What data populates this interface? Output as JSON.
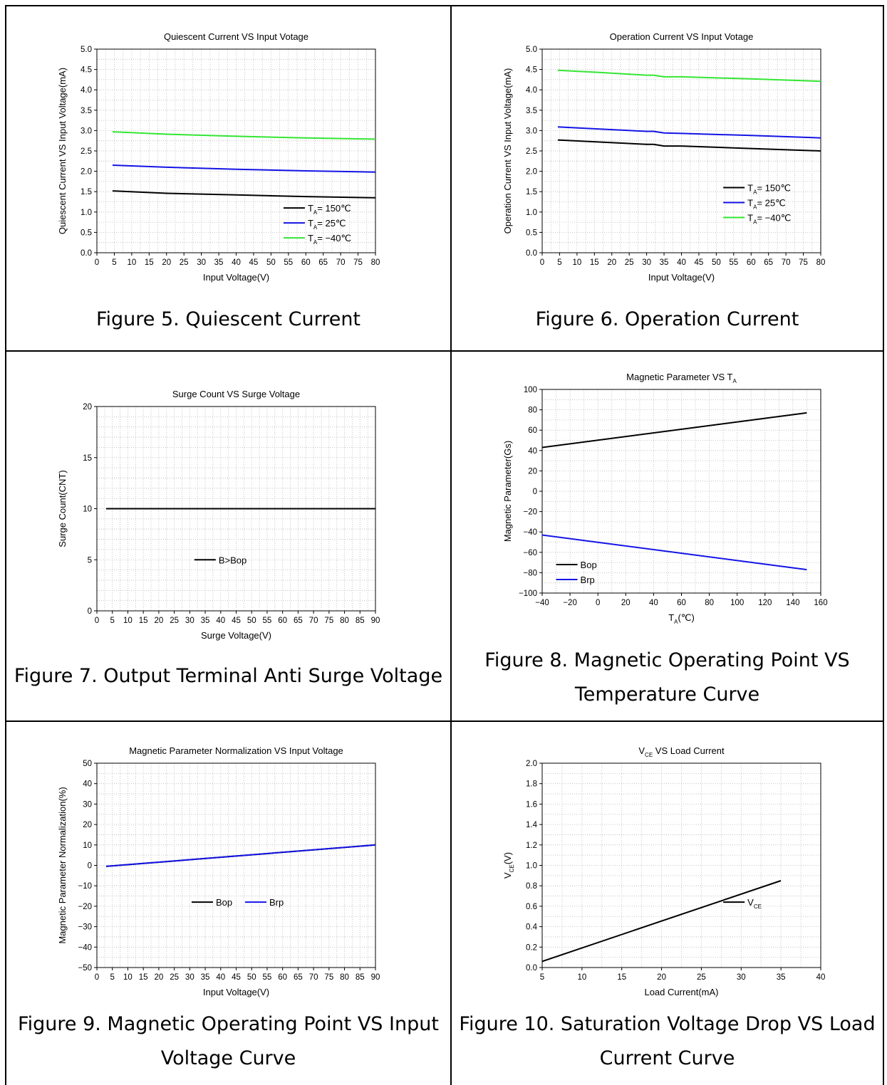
{
  "panels": [
    {
      "caption_lines": [
        "Figure 5. Quiescent Current"
      ],
      "chart": {
        "type": "line",
        "title": "Quiescent Current VS Input Votage",
        "title_sub": "",
        "xlabel": "Input Voltage(V)",
        "xlabel_sub": "",
        "xlabel_after": "",
        "ylabel": "Quiescent Current VS Input Voltage(mA)",
        "ylabel_sub": "",
        "ylabel_after": "",
        "xlim": [
          0,
          80
        ],
        "ylim": [
          0,
          5
        ],
        "xticks": [
          0,
          5,
          10,
          15,
          20,
          25,
          30,
          35,
          40,
          45,
          50,
          55,
          60,
          65,
          70,
          75,
          80
        ],
        "yticks": [
          0.0,
          0.5,
          1.0,
          1.5,
          2.0,
          2.5,
          3.0,
          3.5,
          4.0,
          4.5,
          5.0
        ],
        "ytick_decimals": 1,
        "xminor": 2.5,
        "yminor": 0.25,
        "legend_placement": "bottom-right",
        "legend_layout": "vertical",
        "series": [
          {
            "name": "= 150℃",
            "name_prefix": "T",
            "name_sub": "A",
            "color": "#000000",
            "x": [
              4.5,
              20,
              40,
              60,
              80
            ],
            "y": [
              1.52,
              1.46,
              1.42,
              1.38,
              1.35
            ]
          },
          {
            "name": "= 25℃",
            "name_prefix": "T",
            "name_sub": "A",
            "color": "#1414e6",
            "x": [
              4.5,
              20,
              40,
              60,
              80
            ],
            "y": [
              2.15,
              2.1,
              2.05,
              2.01,
              1.98
            ]
          },
          {
            "name": "= −40℃",
            "name_prefix": "T",
            "name_sub": "A",
            "color": "#33e633",
            "x": [
              4.5,
              20,
              40,
              60,
              80
            ],
            "y": [
              2.97,
              2.91,
              2.86,
              2.82,
              2.79
            ]
          }
        ]
      }
    },
    {
      "caption_lines": [
        "Figure 6. Operation Current"
      ],
      "chart": {
        "type": "line",
        "title": "Operation Current VS Input Votage",
        "title_sub": "",
        "xlabel": "Input Voltage(V)",
        "xlabel_sub": "",
        "xlabel_after": "",
        "ylabel": "Operation Current VS Input Voltage(mA)",
        "ylabel_sub": "",
        "ylabel_after": "",
        "xlim": [
          0,
          80
        ],
        "ylim": [
          0,
          5
        ],
        "xticks": [
          0,
          5,
          10,
          15,
          20,
          25,
          30,
          35,
          40,
          45,
          50,
          55,
          60,
          65,
          70,
          75,
          80
        ],
        "yticks": [
          0.0,
          0.5,
          1.0,
          1.5,
          2.0,
          2.5,
          3.0,
          3.5,
          4.0,
          4.5,
          5.0
        ],
        "ytick_decimals": 1,
        "xminor": 2.5,
        "yminor": 0.25,
        "legend_placement": "center-right",
        "legend_layout": "vertical",
        "series": [
          {
            "name": "= 150℃",
            "name_prefix": "T",
            "name_sub": "A",
            "color": "#000000",
            "x": [
              4.5,
              16,
              30,
              32,
              35,
              40,
              60,
              80
            ],
            "y": [
              2.77,
              2.72,
              2.66,
              2.66,
              2.62,
              2.62,
              2.56,
              2.5
            ]
          },
          {
            "name": "= 25℃",
            "name_prefix": "T",
            "name_sub": "A",
            "color": "#1414e6",
            "x": [
              4.5,
              16,
              30,
              32,
              35,
              40,
              60,
              80
            ],
            "y": [
              3.09,
              3.04,
              2.98,
              2.98,
              2.94,
              2.93,
              2.88,
              2.82
            ]
          },
          {
            "name": "= −40℃",
            "name_prefix": "T",
            "name_sub": "A",
            "color": "#33e633",
            "x": [
              4.5,
              16,
              30,
              32,
              35,
              40,
              60,
              80
            ],
            "y": [
              4.48,
              4.43,
              4.36,
              4.36,
              4.32,
              4.32,
              4.27,
              4.21
            ]
          }
        ]
      }
    },
    {
      "caption_lines": [
        "Figure 7. Output Terminal Anti Surge Voltage"
      ],
      "chart": {
        "type": "line",
        "title": "Surge Count VS Surge Voltage",
        "title_sub": "",
        "xlabel": "Surge Voltage(V)",
        "xlabel_sub": "",
        "xlabel_after": "",
        "ylabel": "Surge Count(CNT)",
        "ylabel_sub": "",
        "ylabel_after": "",
        "xlim": [
          0,
          90
        ],
        "ylim": [
          0,
          20
        ],
        "xticks": [
          0,
          5,
          10,
          15,
          20,
          25,
          30,
          35,
          40,
          45,
          50,
          55,
          60,
          65,
          70,
          75,
          80,
          85,
          90
        ],
        "yticks": [
          0,
          5,
          10,
          15,
          20
        ],
        "ytick_decimals": 0,
        "xminor": 2.5,
        "yminor": 1,
        "legend_placement": "center",
        "legend_layout": "vertical",
        "series": [
          {
            "name": "B>Bop",
            "name_prefix": "",
            "name_sub": "",
            "color": "#000000",
            "x": [
              3,
              90
            ],
            "y": [
              10,
              10
            ]
          }
        ]
      }
    },
    {
      "caption_lines": [
        "Figure 8. Magnetic Operating Point VS",
        "Temperature Curve"
      ],
      "chart": {
        "type": "line",
        "title": "Magnetic Parameter VS T",
        "title_sub": "A",
        "xlabel": "T",
        "xlabel_sub": "A",
        "xlabel_after": "(℃)",
        "ylabel": "Magnetic Parameter(Gs)",
        "ylabel_sub": "",
        "ylabel_after": "",
        "xlim": [
          -40,
          160
        ],
        "ylim": [
          -100,
          100
        ],
        "xticks": [
          -40,
          -20,
          0,
          20,
          40,
          60,
          80,
          100,
          120,
          140,
          160
        ],
        "yticks": [
          -100,
          -80,
          -60,
          -40,
          -20,
          0,
          20,
          40,
          60,
          80,
          100
        ],
        "ytick_decimals": 0,
        "xminor": 10,
        "yminor": 10,
        "legend_placement": "bottom-left",
        "legend_layout": "vertical",
        "series": [
          {
            "name": "Bop",
            "name_prefix": "",
            "name_sub": "",
            "color": "#000000",
            "x": [
              -40,
              150
            ],
            "y": [
              43,
              77
            ]
          },
          {
            "name": "Brp",
            "name_prefix": "",
            "name_sub": "",
            "color": "#1414e6",
            "x": [
              -40,
              150
            ],
            "y": [
              -43,
              -77
            ]
          }
        ]
      }
    },
    {
      "caption_lines": [
        "Figure 9. Magnetic Operating Point VS Input",
        "Voltage Curve"
      ],
      "chart": {
        "type": "line",
        "title": "Magnetic Parameter Normalization VS Input Voltage",
        "title_sub": "",
        "xlabel": "Input Voltage(V)",
        "xlabel_sub": "",
        "xlabel_after": "",
        "ylabel": "Magnetic Parameter Normalization(%)",
        "ylabel_sub": "",
        "ylabel_after": "",
        "xlim": [
          0,
          90
        ],
        "ylim": [
          -50,
          50
        ],
        "xticks": [
          0,
          5,
          10,
          15,
          20,
          25,
          30,
          35,
          40,
          45,
          50,
          55,
          60,
          65,
          70,
          75,
          80,
          85,
          90
        ],
        "yticks": [
          -50,
          -40,
          -30,
          -20,
          -10,
          0,
          10,
          20,
          30,
          40,
          50
        ],
        "ytick_decimals": 0,
        "xminor": 2.5,
        "yminor": 5,
        "legend_placement": "center",
        "legend_layout": "horizontal",
        "series": [
          {
            "name": "Bop",
            "name_prefix": "",
            "name_sub": "",
            "color": "#000000",
            "x": [
              3,
              90
            ],
            "y": [
              -0.5,
              10
            ]
          },
          {
            "name": "Brp",
            "name_prefix": "",
            "name_sub": "",
            "color": "#1414e6",
            "x": [
              3,
              90
            ],
            "y": [
              -0.5,
              10
            ]
          }
        ]
      }
    },
    {
      "caption_lines": [
        "Figure 10. Saturation Voltage Drop VS Load",
        "Current Curve"
      ],
      "chart": {
        "type": "line",
        "title": "V",
        "title_sub": "CE",
        "title_after": " VS Load Current",
        "xlabel": "Load Current(mA)",
        "xlabel_sub": "",
        "xlabel_after": "",
        "ylabel": "V",
        "ylabel_sub": "CE",
        "ylabel_after": "(V)",
        "xlim": [
          5,
          40
        ],
        "ylim": [
          0,
          2
        ],
        "xticks": [
          5,
          10,
          15,
          20,
          25,
          30,
          35,
          40
        ],
        "yticks": [
          0.0,
          0.2,
          0.4,
          0.6,
          0.8,
          1.0,
          1.2,
          1.4,
          1.6,
          1.8,
          2.0
        ],
        "ytick_decimals": 1,
        "xminor": 2.5,
        "yminor": 0.1,
        "legend_placement": "center-right",
        "legend_layout": "vertical",
        "series": [
          {
            "name": "",
            "name_prefix": "V",
            "name_sub": "CE",
            "color": "#000000",
            "x": [
              5,
              35
            ],
            "y": [
              0.06,
              0.85
            ]
          }
        ]
      }
    }
  ]
}
